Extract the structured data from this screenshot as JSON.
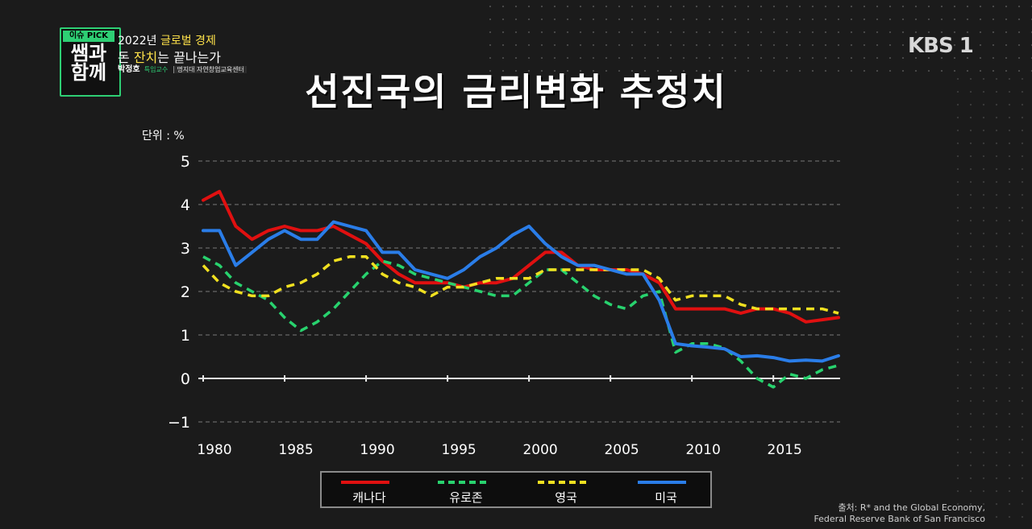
{
  "show": {
    "badge": "이슈 PICK",
    "title_line1": "쌤과",
    "title_line2": "함께",
    "headline_line1_a": "2022년 ",
    "headline_line1_b": "글로벌 경제",
    "headline_line2_a": "돈 ",
    "headline_line2_b": "잔치",
    "headline_line2_c": "는 끝나는가",
    "speaker_name": "박정호",
    "speaker_role": "특임교수",
    "speaker_org": "명지대 자연창업교육센터"
  },
  "logo": "KBS 1",
  "chart_data": {
    "type": "line",
    "title": "선진국의 금리변화 추정치",
    "unit_label": "단위 : %",
    "x_ticks": [
      1980,
      1985,
      1990,
      1995,
      2000,
      2005,
      2010,
      2015
    ],
    "y_ticks": [
      -1,
      0,
      1,
      2,
      3,
      4,
      5
    ],
    "ylim": [
      -1,
      5
    ],
    "xlim": [
      1980,
      2019
    ],
    "grid": true,
    "legend_position": "bottom",
    "series": [
      {
        "name": "캐나다",
        "color": "#e01010",
        "dash": "solid",
        "x": [
          1980,
          1981,
          1982,
          1983,
          1984,
          1985,
          1986,
          1987,
          1988,
          1989,
          1990,
          1991,
          1992,
          1993,
          1994,
          1995,
          1996,
          1997,
          1998,
          1999,
          2000,
          2001,
          2002,
          2003,
          2004,
          2005,
          2006,
          2007,
          2008,
          2009,
          2010,
          2011,
          2012,
          2013,
          2014,
          2015,
          2016,
          2017,
          2018,
          2019
        ],
        "y": [
          4.1,
          4.3,
          3.5,
          3.2,
          3.4,
          3.5,
          3.4,
          3.4,
          3.5,
          3.3,
          3.1,
          2.7,
          2.4,
          2.2,
          2.2,
          2.2,
          2.1,
          2.2,
          2.2,
          2.3,
          2.6,
          2.9,
          2.9,
          2.6,
          2.5,
          2.5,
          2.5,
          2.4,
          2.2,
          1.6,
          1.6,
          1.6,
          1.6,
          1.5,
          1.6,
          1.6,
          1.5,
          1.3,
          1.35,
          1.4
        ]
      },
      {
        "name": "유로존",
        "color": "#28d26e",
        "dash": "dashed",
        "x": [
          1980,
          1981,
          1982,
          1983,
          1984,
          1985,
          1986,
          1987,
          1988,
          1989,
          1990,
          1991,
          1992,
          1993,
          1994,
          1995,
          1996,
          1997,
          1998,
          1999,
          2000,
          2001,
          2002,
          2003,
          2004,
          2005,
          2006,
          2007,
          2008,
          2009,
          2010,
          2011,
          2012,
          2013,
          2014,
          2015,
          2016,
          2017,
          2018,
          2019
        ],
        "y": [
          2.8,
          2.6,
          2.2,
          2.0,
          1.8,
          1.4,
          1.1,
          1.3,
          1.6,
          2.0,
          2.4,
          2.7,
          2.6,
          2.4,
          2.3,
          2.2,
          2.1,
          2.0,
          1.9,
          1.9,
          2.2,
          2.5,
          2.5,
          2.2,
          1.9,
          1.7,
          1.6,
          1.9,
          2.0,
          0.6,
          0.8,
          0.8,
          0.7,
          0.4,
          0.0,
          -0.2,
          0.1,
          0.0,
          0.2,
          0.3
        ]
      },
      {
        "name": "영국",
        "color": "#f0e020",
        "dash": "dashed",
        "x": [
          1980,
          1981,
          1982,
          1983,
          1984,
          1985,
          1986,
          1987,
          1988,
          1989,
          1990,
          1991,
          1992,
          1993,
          1994,
          1995,
          1996,
          1997,
          1998,
          1999,
          2000,
          2001,
          2002,
          2003,
          2004,
          2005,
          2006,
          2007,
          2008,
          2009,
          2010,
          2011,
          2012,
          2013,
          2014,
          2015,
          2016,
          2017,
          2018,
          2019
        ],
        "y": [
          2.6,
          2.2,
          2.0,
          1.9,
          1.9,
          2.1,
          2.2,
          2.4,
          2.7,
          2.8,
          2.8,
          2.4,
          2.2,
          2.1,
          1.9,
          2.1,
          2.1,
          2.2,
          2.3,
          2.3,
          2.3,
          2.5,
          2.5,
          2.5,
          2.5,
          2.5,
          2.5,
          2.5,
          2.3,
          1.8,
          1.9,
          1.9,
          1.9,
          1.7,
          1.6,
          1.6,
          1.6,
          1.6,
          1.6,
          1.5
        ]
      },
      {
        "name": "미국",
        "color": "#2a7de8",
        "dash": "solid",
        "x": [
          1980,
          1981,
          1982,
          1983,
          1984,
          1985,
          1986,
          1987,
          1988,
          1989,
          1990,
          1991,
          1992,
          1993,
          1994,
          1995,
          1996,
          1997,
          1998,
          1999,
          2000,
          2001,
          2002,
          2003,
          2004,
          2005,
          2006,
          2007,
          2008,
          2009,
          2010,
          2011,
          2012,
          2013,
          2014,
          2015,
          2016,
          2017,
          2018,
          2019
        ],
        "y": [
          3.4,
          3.4,
          2.6,
          2.9,
          3.2,
          3.4,
          3.2,
          3.2,
          3.6,
          3.5,
          3.4,
          2.9,
          2.9,
          2.5,
          2.4,
          2.3,
          2.5,
          2.8,
          3.0,
          3.3,
          3.5,
          3.1,
          2.8,
          2.6,
          2.6,
          2.5,
          2.4,
          2.4,
          1.8,
          0.8,
          0.75,
          0.72,
          0.68,
          0.5,
          0.52,
          0.48,
          0.4,
          0.42,
          0.4,
          0.52
        ]
      }
    ]
  },
  "source": {
    "line1": "출처: R* and the Global Economy,",
    "line2": "Federal Reserve Bank of San Francisco"
  }
}
